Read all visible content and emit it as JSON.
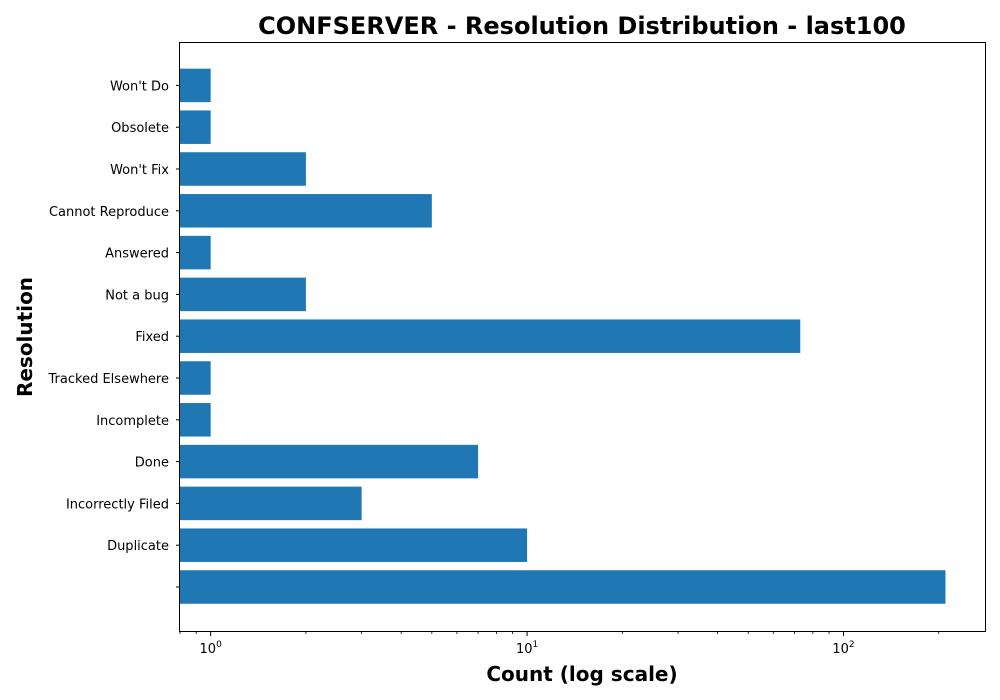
{
  "chart_data": {
    "type": "bar",
    "orientation": "horizontal",
    "title": "CONFSERVER - Resolution Distribution - last100",
    "xlabel": "Count (log scale)",
    "ylabel": "Resolution",
    "xscale": "log",
    "xlim": [
      0.8,
      280
    ],
    "xticks": [
      {
        "value": 1,
        "base": "10",
        "exp": "0"
      },
      {
        "value": 10,
        "base": "10",
        "exp": "1"
      },
      {
        "value": 100,
        "base": "10",
        "exp": "2"
      }
    ],
    "categories": [
      "",
      "Duplicate",
      "Incorrectly Filed",
      "Done",
      "Incomplete",
      "Tracked Elsewhere",
      "Fixed",
      "Not a bug",
      "Answered",
      "Cannot Reproduce",
      "Won't Fix",
      "Obsolete",
      "Won't Do"
    ],
    "values": [
      210,
      10,
      3,
      7,
      1,
      1,
      73,
      2,
      1,
      5,
      2,
      1,
      1
    ],
    "bar_color": "#1f77b4",
    "grid": false,
    "legend": "none"
  }
}
